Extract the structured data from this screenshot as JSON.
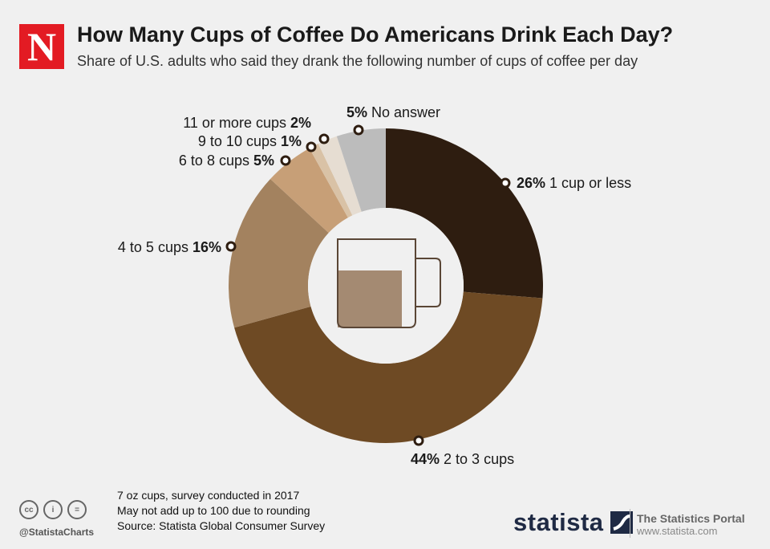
{
  "brand_logo": "N",
  "header": {
    "title": "How Many Cups of Coffee Do Americans Drink Each Day?",
    "subtitle": "Share of U.S. adults who said they drank the following number of cups of coffee per day"
  },
  "chart_data": {
    "type": "pie",
    "variant": "donut",
    "categories": [
      "1 cup or less",
      "2 to 3 cups",
      "4 to 5 cups",
      "6 to 8 cups",
      "9 to 10 cups",
      "11 or more cups",
      "No answer"
    ],
    "values": [
      26,
      44,
      16,
      5,
      1,
      2,
      5
    ],
    "value_labels": [
      "26%",
      "44%",
      "16%",
      "5%",
      "1%",
      "2%",
      "5%"
    ],
    "colors": [
      "#2e1d10",
      "#6e4a24",
      "#a3825f",
      "#c79f77",
      "#d9c2a6",
      "#e6ddd2",
      "#bcbcbc"
    ],
    "center_icon": "coffee-mug-icon"
  },
  "footer": {
    "notes": [
      "7 oz cups, survey conducted in 2017",
      "May not add up to 100 due to rounding",
      "Source: Statista Global Consumer Survey"
    ],
    "handle": "@StatistaCharts",
    "license_icons": [
      "cc-icon",
      "by-icon",
      "nd-icon"
    ],
    "brand": "statista",
    "portal_title": "The Statistics Portal",
    "portal_url": "www.statista.com"
  }
}
